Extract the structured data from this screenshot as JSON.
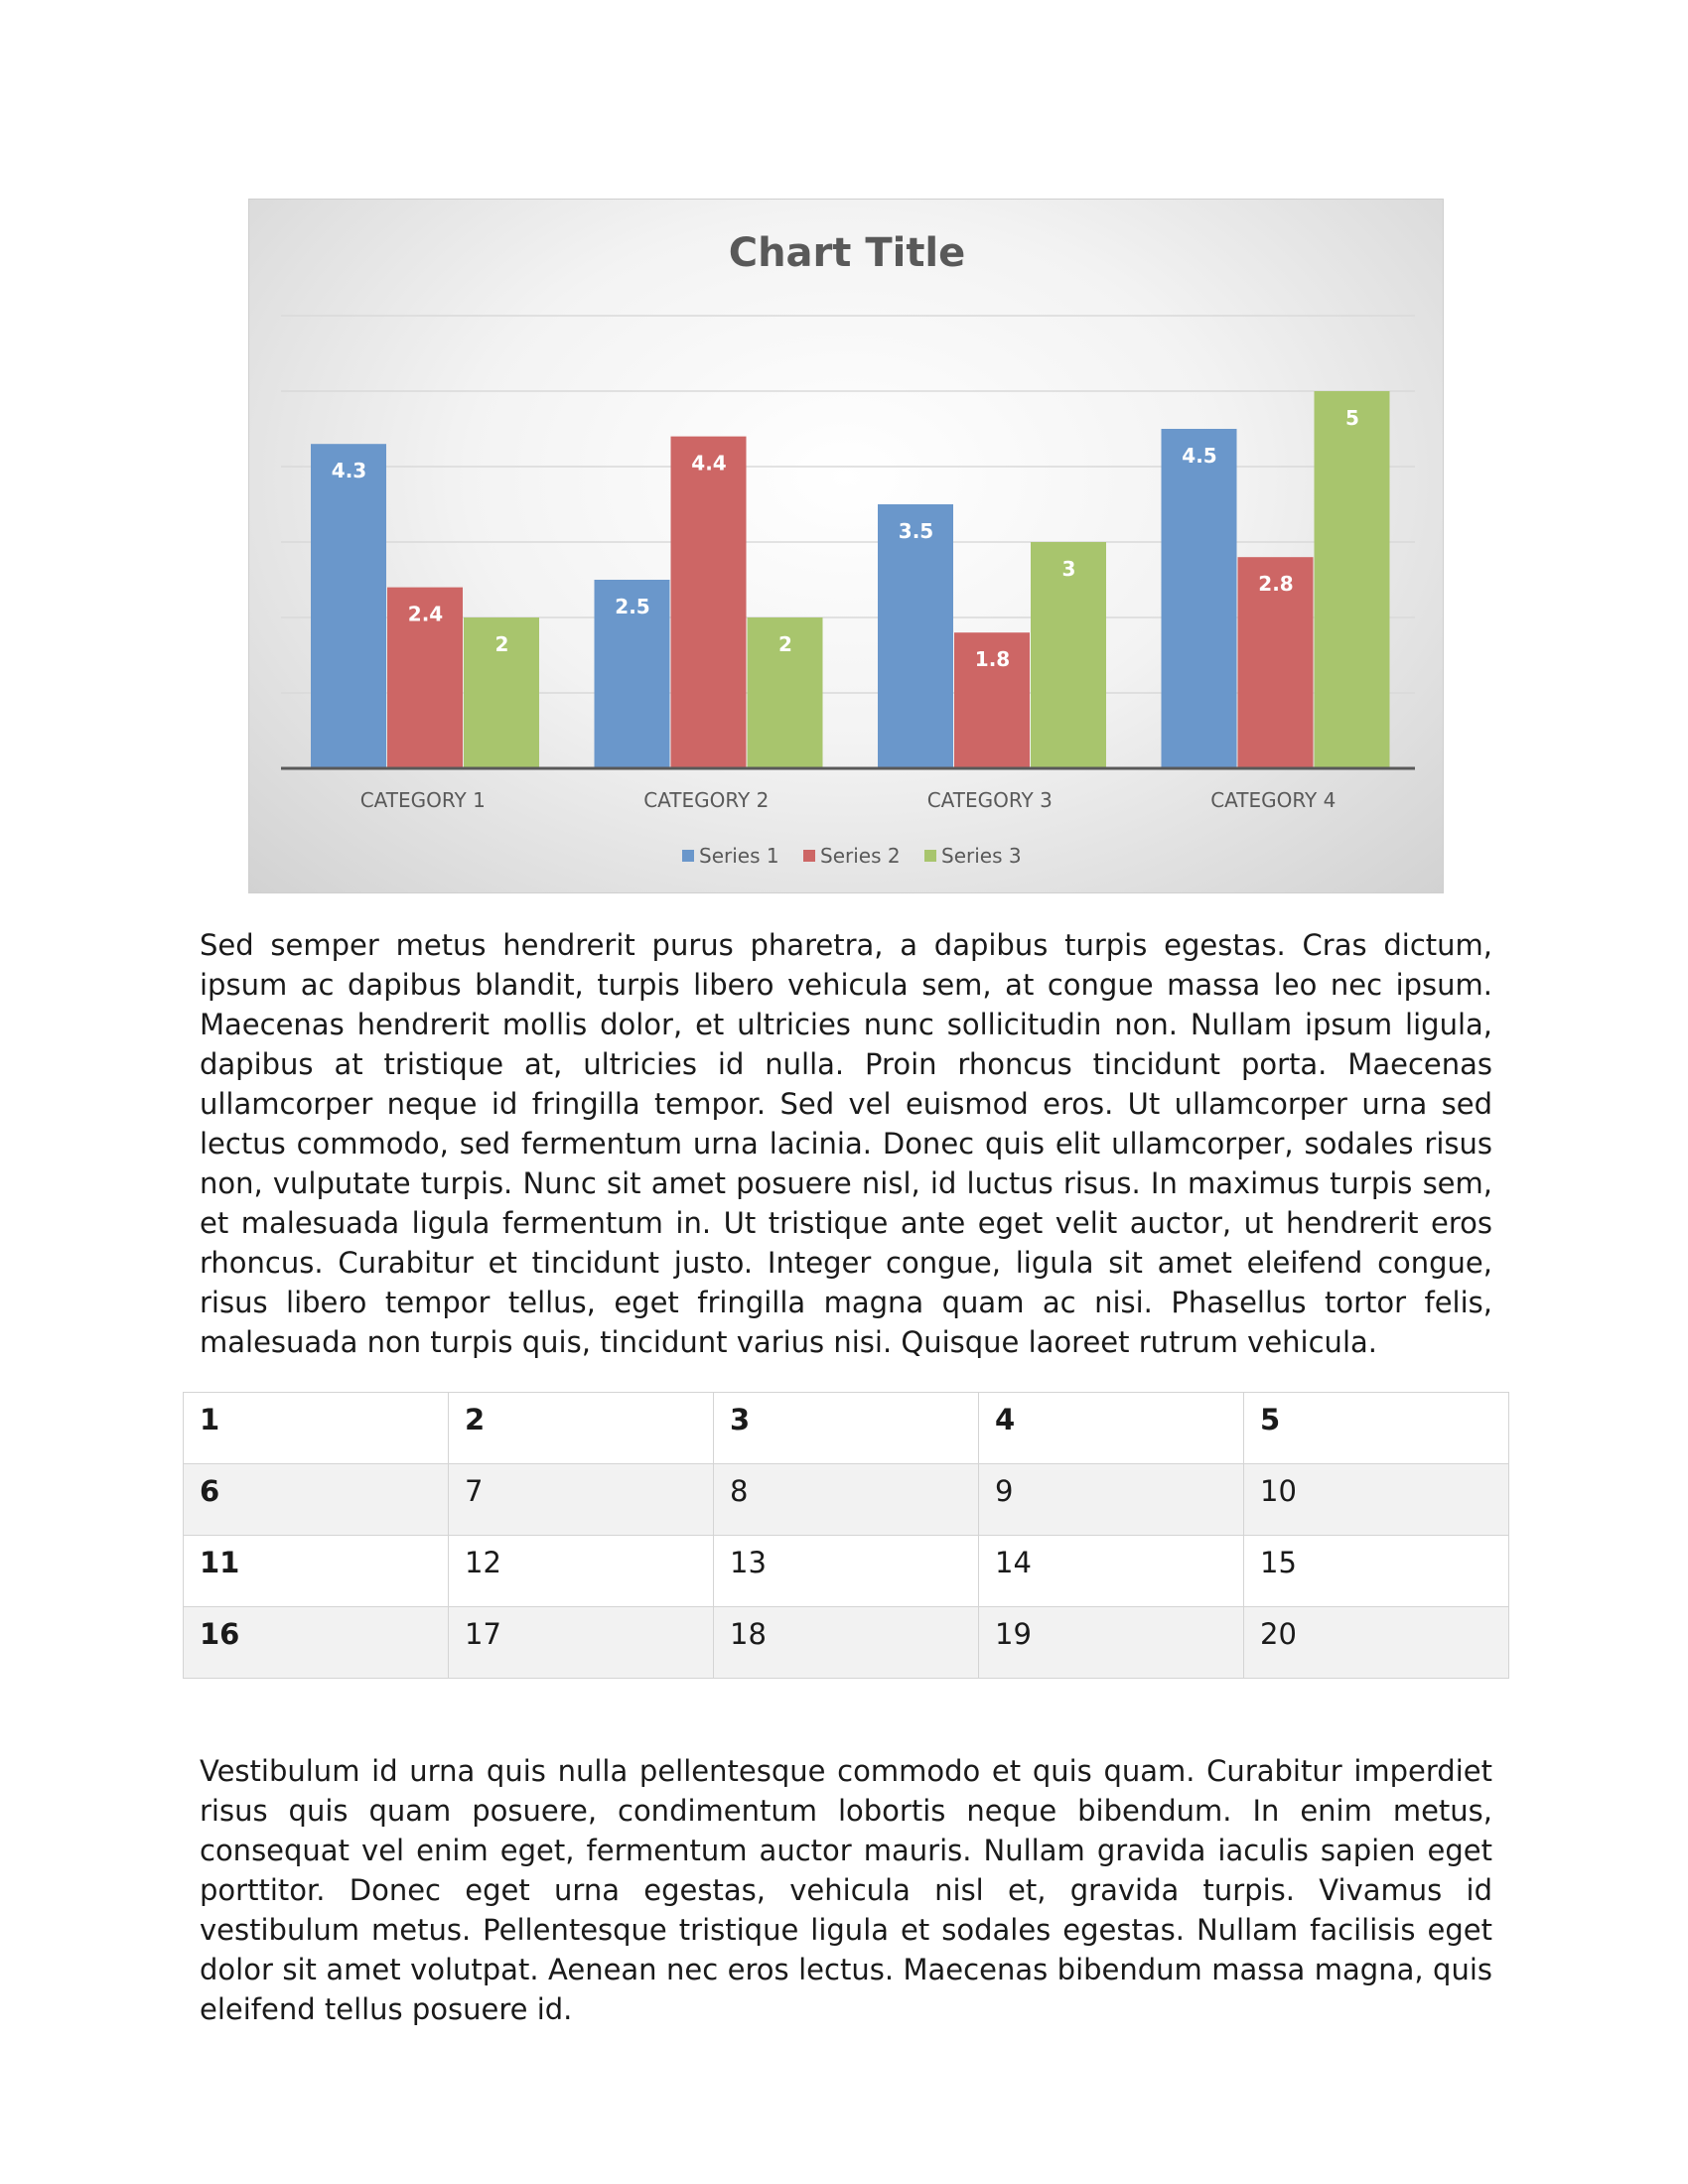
{
  "chart_data": {
    "type": "bar",
    "title": "Chart Title",
    "categories": [
      "CATEGORY 1",
      "CATEGORY 2",
      "CATEGORY 3",
      "CATEGORY 4"
    ],
    "series": [
      {
        "name": "Series 1",
        "values": [
          4.3,
          2.5,
          3.5,
          4.5
        ],
        "color": "#6a97cb"
      },
      {
        "name": "Series 2",
        "values": [
          2.4,
          4.4,
          1.8,
          2.8
        ],
        "color": "#cd6665"
      },
      {
        "name": "Series 3",
        "values": [
          2,
          2,
          3,
          5
        ],
        "color": "#a8c56d"
      }
    ],
    "ylim": [
      0,
      6
    ],
    "grid": true,
    "legend": "bottom",
    "data_labels": true
  },
  "paragraphs": [
    "Sed semper metus hendrerit purus pharetra, a dapibus turpis egestas. Cras dictum, ipsum ac dapibus blandit, turpis libero vehicula sem, at congue massa leo nec ipsum. Maecenas hendrerit mollis dolor, et ultricies nunc sollicitudin non. Nullam ipsum ligula, dapibus at tristique at, ultricies id nulla. Proin rhoncus tincidunt porta. Maecenas ullamcorper neque id fringilla tempor. Sed vel euismod eros. Ut ullamcorper urna sed lectus commodo, sed fermentum urna lacinia. Donec quis elit ullamcorper, sodales risus non, vulputate turpis. Nunc sit amet posuere nisl, id luctus risus. In maximus turpis sem, et malesuada ligula fermentum in. Ut tristique ante eget velit auctor, ut hendrerit eros rhoncus. Curabitur et tincidunt justo. Integer congue, ligula sit amet eleifend congue, risus libero tempor tellus, eget fringilla magna quam ac nisi. Phasellus tortor felis, malesuada non turpis quis, tincidunt varius nisi. Quisque laoreet rutrum vehicula.",
    "Vestibulum id urna quis nulla pellentesque commodo et quis quam. Curabitur imperdiet risus quis quam posuere, condimentum lobortis neque bibendum. In enim metus, consequat vel enim eget, fermentum auctor mauris. Nullam gravida iaculis sapien eget porttitor. Donec eget urna egestas, vehicula nisl et, gravida turpis. Vivamus id vestibulum metus. Pellentesque tristique ligula et sodales egestas. Nullam facilisis eget dolor sit amet volutpat. Aenean nec eros lectus. Maecenas bibendum massa magna, quis eleifend tellus posuere id."
  ],
  "table": {
    "rows": [
      [
        "1",
        "2",
        "3",
        "4",
        "5"
      ],
      [
        "6",
        "7",
        "8",
        "9",
        "10"
      ],
      [
        "11",
        "12",
        "13",
        "14",
        "15"
      ],
      [
        "16",
        "17",
        "18",
        "19",
        "20"
      ]
    ]
  }
}
